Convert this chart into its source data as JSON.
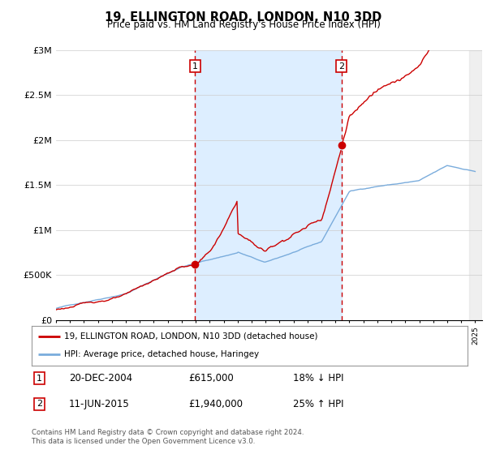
{
  "title": "19, ELLINGTON ROAD, LONDON, N10 3DD",
  "subtitle": "Price paid vs. HM Land Registry's House Price Index (HPI)",
  "legend_label_red": "19, ELLINGTON ROAD, LONDON, N10 3DD (detached house)",
  "legend_label_blue": "HPI: Average price, detached house, Haringey",
  "annotation1_label": "1",
  "annotation1_date": "20-DEC-2004",
  "annotation1_price": "£615,000",
  "annotation1_hpi": "18% ↓ HPI",
  "annotation1_year": 2004.96,
  "annotation2_label": "2",
  "annotation2_date": "11-JUN-2015",
  "annotation2_price": "£1,940,000",
  "annotation2_hpi": "25% ↑ HPI",
  "annotation2_year": 2015.44,
  "footer": "Contains HM Land Registry data © Crown copyright and database right 2024.\nThis data is licensed under the Open Government Licence v3.0.",
  "ylim": [
    0,
    3000000
  ],
  "yticks": [
    0,
    500000,
    1000000,
    1500000,
    2000000,
    2500000,
    3000000
  ],
  "ytick_labels": [
    "£0",
    "£500K",
    "£1M",
    "£1.5M",
    "£2M",
    "£2.5M",
    "£3M"
  ],
  "xlim_start": 1995.0,
  "xlim_end": 2025.5,
  "color_red": "#cc0000",
  "color_blue": "#7aacdc",
  "color_shade": "#ddeeff",
  "color_vline": "#cc0000",
  "bg_color": "#ffffff",
  "grid_color": "#cccccc",
  "sale_point1_x": 2004.96,
  "sale_point1_y": 615000,
  "sale_point2_x": 2015.44,
  "sale_point2_y": 1940000
}
